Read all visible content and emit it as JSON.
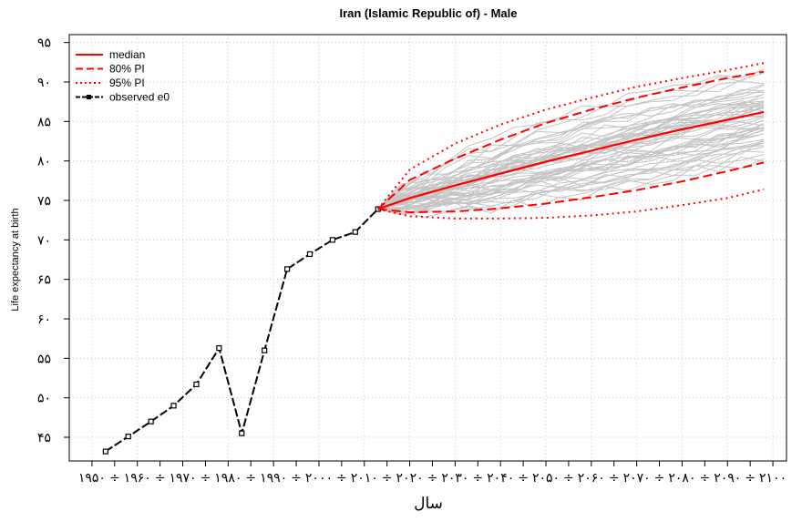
{
  "chart_data": {
    "type": "line",
    "title": "Iran (Islamic Republic of) - Male",
    "xlabel": "سال",
    "ylabel": "Life expectancy at birth",
    "xlim": [
      1945,
      2103
    ],
    "ylim": [
      42,
      96
    ],
    "x_ticks": [
      1950,
      1955,
      1960,
      1965,
      1970,
      1975,
      1980,
      1985,
      1990,
      1995,
      2000,
      2005,
      2010,
      2015,
      2020,
      2025,
      2030,
      2035,
      2040,
      2045,
      2050,
      2055,
      2060,
      2065,
      2070,
      2075,
      2080,
      2085,
      2090,
      2095,
      2100
    ],
    "x_tick_labels": [
      "۱۹۵۰",
      "÷",
      "۱۹۶۰",
      "÷",
      "۱۹۷۰",
      "÷",
      "۱۹۸۰",
      "÷",
      "۱۹۹۰",
      "÷",
      "۲۰۰۰",
      "÷",
      "۲۰۱۰",
      "÷",
      "۲۰۲۰",
      "÷",
      "۲۰۳۰",
      "÷",
      "۲۰۴۰",
      "÷",
      "۲۰۵۰",
      "÷",
      "۲۰۶۰",
      "÷",
      "۲۰۷۰",
      "÷",
      "۲۰۸۰",
      "÷",
      "۲۰۹۰",
      "÷",
      "۲۱۰۰"
    ],
    "y_ticks": [
      45,
      50,
      55,
      60,
      65,
      70,
      75,
      80,
      85,
      90,
      95
    ],
    "y_tick_labels": [
      "۴۵",
      "۵۰",
      "۵۵",
      "۶۰",
      "۶۵",
      "۷۰",
      "۷۵",
      "۸۰",
      "۸۵",
      "۹۰",
      "۹۵"
    ],
    "grid": true,
    "legend_position": "top-left",
    "legend": [
      {
        "label": "median",
        "color": "#ff0000",
        "style": "solid"
      },
      {
        "label": "80% PI",
        "color": "#ff0000",
        "style": "dashed"
      },
      {
        "label": "95% PI",
        "color": "#ff0000",
        "style": "dotted"
      },
      {
        "label": "observed e0",
        "color": "#000000",
        "style": "dashed-with-squares"
      }
    ],
    "series": [
      {
        "name": "observed e0",
        "color": "#000000",
        "x": [
          1953,
          1958,
          1963,
          1968,
          1973,
          1978,
          1983,
          1988,
          1993,
          1998,
          2003,
          2008,
          2013
        ],
        "y": [
          43.2,
          45.1,
          47.0,
          49.0,
          51.7,
          56.3,
          45.5,
          56.0,
          66.3,
          68.2,
          70.0,
          71.0,
          73.9
        ]
      },
      {
        "name": "median",
        "color": "#ff0000",
        "x": [
          2013,
          2020,
          2030,
          2040,
          2050,
          2060,
          2070,
          2080,
          2090,
          2098
        ],
        "y": [
          73.9,
          75.3,
          76.9,
          78.4,
          79.9,
          81.3,
          82.7,
          84.0,
          85.2,
          86.2
        ]
      },
      {
        "name": "80% PI",
        "color": "#ff0000",
        "x": [
          2013,
          2020,
          2030,
          2040,
          2050,
          2060,
          2070,
          2080,
          2090,
          2098
        ],
        "upper": [
          73.9,
          77.6,
          80.3,
          82.7,
          84.8,
          86.5,
          88.0,
          89.3,
          90.5,
          91.3
        ],
        "lower": [
          73.9,
          73.5,
          73.6,
          74.0,
          74.6,
          75.4,
          76.3,
          77.4,
          78.7,
          79.8
        ]
      },
      {
        "name": "95% PI",
        "color": "#ff0000",
        "x": [
          2013,
          2020,
          2030,
          2040,
          2050,
          2060,
          2070,
          2080,
          2090,
          2098
        ],
        "upper": [
          73.9,
          78.9,
          82.2,
          84.6,
          86.5,
          88.0,
          89.4,
          90.5,
          91.5,
          92.4
        ],
        "lower": [
          73.9,
          73.0,
          72.7,
          72.7,
          72.8,
          73.1,
          73.6,
          74.4,
          75.3,
          76.4
        ]
      }
    ]
  }
}
